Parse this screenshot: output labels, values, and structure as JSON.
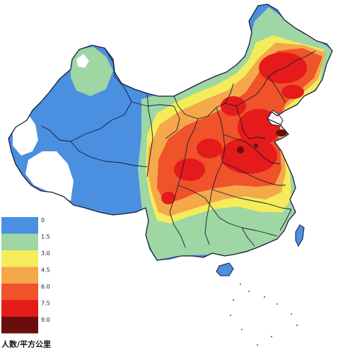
{
  "legend": {
    "title": "人数/平方公里",
    "entries": [
      {
        "label": "0",
        "color": "#4a8fe0"
      },
      {
        "label": "1.5",
        "color": "#9ed6a4"
      },
      {
        "label": "3.0",
        "color": "#f4ec5a"
      },
      {
        "label": "4.5",
        "color": "#f4a84a"
      },
      {
        "label": "6.0",
        "color": "#f0522a"
      },
      {
        "label": "7.5",
        "color": "#e51a1a"
      },
      {
        "label": "9.0",
        "color": "#6a0d0d"
      }
    ]
  },
  "colors": {
    "ocean": "#ffffff",
    "border": "#1a1a3a",
    "blank": "#ffffff"
  }
}
